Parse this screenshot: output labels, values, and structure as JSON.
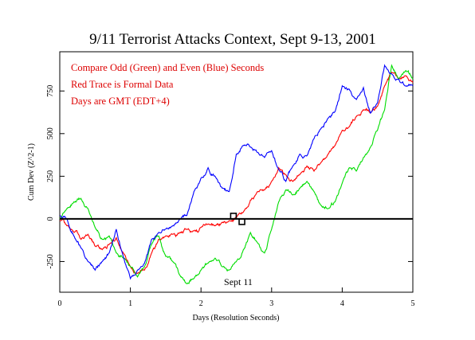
{
  "chart_data": {
    "type": "line",
    "title": "9/11 Terrorist Attacks Context, Sept 9-13, 2001",
    "xlabel": "Days (Resolution Seconds)",
    "ylabel": "Cum Dev (Z^2-1)",
    "xlim": [
      0,
      5
    ],
    "ylim": [
      -430,
      980
    ],
    "x_ticks": [
      0,
      1,
      2,
      3,
      4,
      5
    ],
    "y_ticks": [
      -250,
      0,
      250,
      500,
      750
    ],
    "annotations": [
      "Compare Odd (Green) and Even (Blue) Seconds",
      "Red Trace is Formal Data",
      "Days are GMT (EDT+4)"
    ],
    "event_label": "Sept 11",
    "event_marker_x": [
      2.42,
      2.54
    ],
    "zero_line": true,
    "grid": false,
    "colors": {
      "formal": "#ff0000",
      "odd": "#00dd00",
      "even": "#0000ff",
      "annotation": "#dd0000"
    },
    "series": [
      {
        "color": "#ff0000",
        "x": [
          0,
          0.1,
          0.2,
          0.3,
          0.4,
          0.5,
          0.6,
          0.7,
          0.8,
          0.9,
          1.0,
          1.1,
          1.2,
          1.3,
          1.4,
          1.5,
          1.6,
          1.7,
          1.8,
          1.9,
          2.0,
          2.1,
          2.2,
          2.3,
          2.4,
          2.5,
          2.6,
          2.7,
          2.8,
          2.9,
          3.0,
          3.1,
          3.2,
          3.3,
          3.4,
          3.5,
          3.6,
          3.7,
          3.8,
          3.9,
          4.0,
          4.1,
          4.2,
          4.3,
          4.4,
          4.5,
          4.6,
          4.7,
          4.8,
          4.9,
          5.0
        ],
        "y": [
          -10,
          -40,
          -80,
          -120,
          -90,
          -160,
          -180,
          -150,
          -110,
          -200,
          -280,
          -320,
          -300,
          -200,
          -120,
          -100,
          -90,
          -80,
          -60,
          -70,
          -50,
          -30,
          -40,
          -20,
          -10,
          10,
          40,
          110,
          160,
          170,
          220,
          300,
          260,
          220,
          260,
          310,
          280,
          330,
          380,
          430,
          520,
          540,
          600,
          640,
          620,
          660,
          780,
          860,
          820,
          840,
          800
        ]
      },
      {
        "color": "#00dd00",
        "x": [
          0,
          0.1,
          0.2,
          0.3,
          0.4,
          0.5,
          0.6,
          0.7,
          0.8,
          0.9,
          1.0,
          1.1,
          1.2,
          1.3,
          1.4,
          1.5,
          1.6,
          1.7,
          1.8,
          1.9,
          2.0,
          2.1,
          2.2,
          2.3,
          2.4,
          2.5,
          2.6,
          2.7,
          2.8,
          2.9,
          3.0,
          3.1,
          3.2,
          3.3,
          3.4,
          3.5,
          3.6,
          3.7,
          3.8,
          3.9,
          4.0,
          4.1,
          4.2,
          4.3,
          4.4,
          4.5,
          4.6,
          4.7,
          4.8,
          4.9,
          5.0
        ],
        "y": [
          0,
          60,
          100,
          120,
          60,
          -50,
          -120,
          -100,
          -200,
          -230,
          -280,
          -340,
          -280,
          -150,
          -100,
          -220,
          -250,
          -330,
          -380,
          -350,
          -300,
          -260,
          -230,
          -280,
          -300,
          -250,
          -180,
          -80,
          -140,
          -200,
          -60,
          100,
          170,
          140,
          180,
          220,
          160,
          80,
          60,
          100,
          210,
          300,
          280,
          360,
          420,
          520,
          640,
          900,
          820,
          870,
          820
        ]
      },
      {
        "color": "#0000ff",
        "x": [
          0,
          0.1,
          0.2,
          0.3,
          0.4,
          0.5,
          0.6,
          0.7,
          0.8,
          0.9,
          1.0,
          1.1,
          1.2,
          1.3,
          1.4,
          1.5,
          1.6,
          1.7,
          1.8,
          1.9,
          2.0,
          2.1,
          2.2,
          2.3,
          2.4,
          2.5,
          2.6,
          2.7,
          2.8,
          2.9,
          3.0,
          3.1,
          3.2,
          3.3,
          3.4,
          3.5,
          3.6,
          3.7,
          3.8,
          3.9,
          4.0,
          4.1,
          4.2,
          4.3,
          4.4,
          4.5,
          4.6,
          4.7,
          4.8,
          4.9,
          5.0
        ],
        "y": [
          20,
          0,
          -100,
          -170,
          -250,
          -300,
          -250,
          -200,
          -60,
          -220,
          -350,
          -300,
          -260,
          -120,
          -80,
          -60,
          -40,
          0,
          20,
          160,
          240,
          300,
          250,
          180,
          160,
          380,
          430,
          420,
          390,
          360,
          400,
          290,
          220,
          310,
          380,
          370,
          470,
          530,
          590,
          630,
          780,
          760,
          700,
          770,
          620,
          680,
          900,
          850,
          820,
          780,
          780
        ]
      }
    ]
  }
}
